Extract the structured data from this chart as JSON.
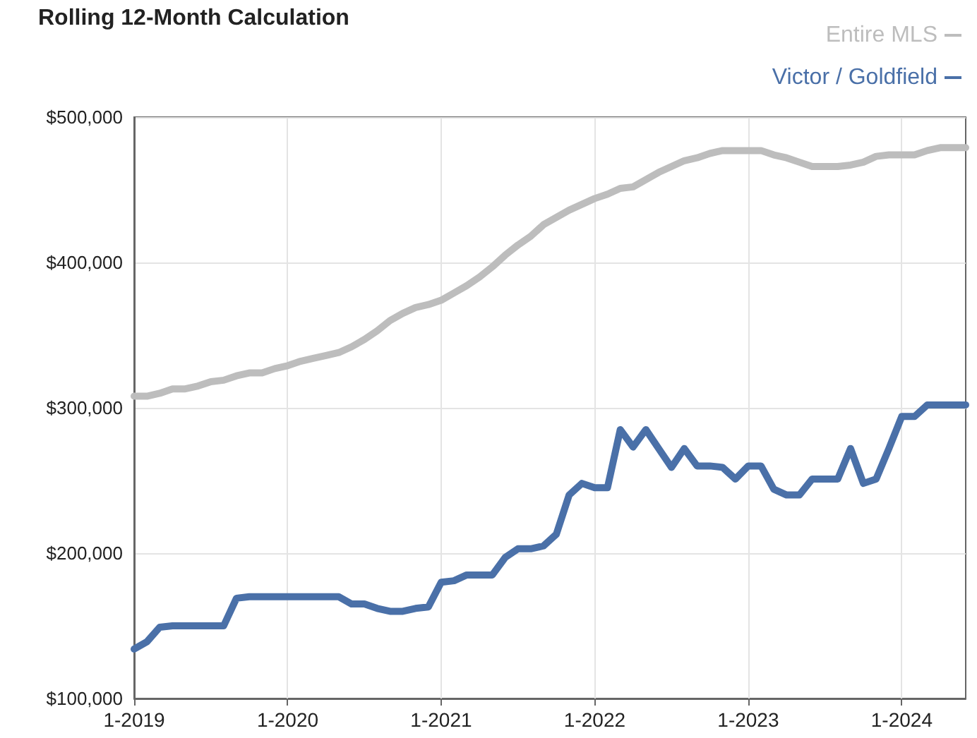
{
  "chart_data": {
    "type": "line",
    "title": "Rolling 12-Month Calculation",
    "categories": [
      "1-2019",
      null,
      null,
      null,
      null,
      null,
      null,
      null,
      null,
      null,
      null,
      null,
      "1-2020",
      null,
      null,
      null,
      null,
      null,
      null,
      null,
      null,
      null,
      null,
      null,
      "1-2021",
      null,
      null,
      null,
      null,
      null,
      null,
      null,
      null,
      null,
      null,
      null,
      "1-2022",
      null,
      null,
      null,
      null,
      null,
      null,
      null,
      null,
      null,
      null,
      null,
      "1-2023",
      null,
      null,
      null,
      null,
      null,
      null,
      null,
      null,
      null,
      null,
      null,
      "1-2024",
      null,
      null,
      null,
      null,
      null
    ],
    "series": [
      {
        "name": "Entire MLS",
        "color": "#bdbdbd",
        "values": [
          308000,
          308000,
          310000,
          313000,
          313000,
          315000,
          318000,
          319000,
          322000,
          324000,
          324000,
          327000,
          329000,
          332000,
          334000,
          336000,
          338000,
          342000,
          347000,
          353000,
          360000,
          365000,
          369000,
          371000,
          374000,
          379000,
          384000,
          390000,
          397000,
          405000,
          412000,
          418000,
          426000,
          431000,
          436000,
          440000,
          444000,
          447000,
          451000,
          452000,
          457000,
          462000,
          466000,
          470000,
          472000,
          475000,
          477000,
          477000,
          477000,
          477000,
          474000,
          472000,
          469000,
          466000,
          466000,
          466000,
          467000,
          469000,
          473000,
          474000,
          474000,
          474000,
          477000,
          479000,
          479000,
          479000
        ]
      },
      {
        "name": "Victor / Goldfield",
        "color": "#4a70a8",
        "values": [
          134000,
          139000,
          149000,
          150000,
          150000,
          150000,
          150000,
          150000,
          169000,
          170000,
          170000,
          170000,
          170000,
          170000,
          170000,
          170000,
          170000,
          165000,
          165000,
          162000,
          160000,
          160000,
          162000,
          163000,
          180000,
          181000,
          185000,
          185000,
          185000,
          197000,
          203000,
          203000,
          205000,
          213000,
          240000,
          248000,
          245000,
          245000,
          285000,
          273000,
          285000,
          272000,
          259000,
          272000,
          260000,
          260000,
          259000,
          251000,
          260000,
          260000,
          244000,
          240000,
          240000,
          251000,
          251000,
          251000,
          272000,
          248000,
          251000,
          272000,
          294000,
          294000,
          302000,
          302000,
          302000,
          302000
        ]
      }
    ],
    "ylim": [
      100000,
      500000
    ],
    "yticks": [
      {
        "value": 100000,
        "label": "$100,000"
      },
      {
        "value": 200000,
        "label": "$200,000"
      },
      {
        "value": 300000,
        "label": "$300,000"
      },
      {
        "value": 400000,
        "label": "$400,000"
      },
      {
        "value": 500000,
        "label": "$500,000"
      }
    ],
    "grid": true,
    "legend": "top right",
    "marker": "none",
    "line_style": "solid"
  }
}
